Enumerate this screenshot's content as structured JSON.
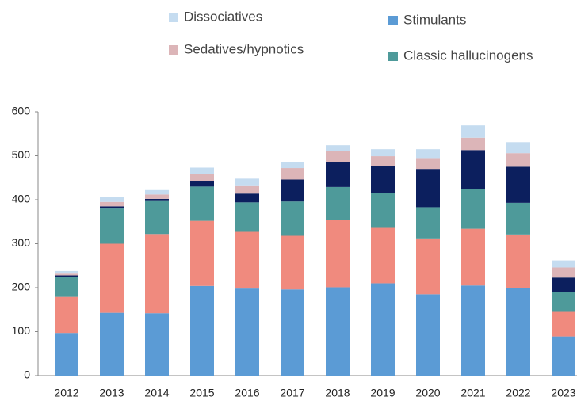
{
  "chart_data": {
    "type": "stacked_bar",
    "categories": [
      "2012",
      "2013",
      "2014",
      "2015",
      "2016",
      "2017",
      "2018",
      "2019",
      "2020",
      "2021",
      "2022",
      "2023"
    ],
    "series": [
      {
        "name": "Stimulants",
        "color": "#5b9bd5",
        "values": [
          97,
          143,
          142,
          204,
          198,
          196,
          201,
          210,
          185,
          205,
          199,
          89
        ]
      },
      {
        "color": "#f08a7e",
        "values": [
          82,
          157,
          180,
          148,
          129,
          122,
          153,
          126,
          127,
          129,
          122,
          56
        ]
      },
      {
        "name": "Classic hallucinogens",
        "color": "#4e9a9a",
        "values": [
          45,
          80,
          75,
          78,
          67,
          78,
          75,
          80,
          71,
          91,
          72,
          45
        ]
      },
      {
        "color": "#0c1f5e",
        "values": [
          4,
          5,
          5,
          13,
          20,
          50,
          57,
          60,
          87,
          88,
          82,
          33
        ]
      },
      {
        "name": "Sedatives/hypnotics",
        "color": "#dcb5b8",
        "values": [
          4,
          10,
          10,
          16,
          17,
          26,
          25,
          23,
          23,
          28,
          31,
          23
        ]
      },
      {
        "name": "Dissociatives",
        "color": "#c5dcf0",
        "values": [
          6,
          12,
          10,
          14,
          17,
          14,
          13,
          16,
          22,
          28,
          25,
          16
        ]
      }
    ],
    "ylim": [
      0,
      600
    ],
    "yticks": [
      0,
      100,
      200,
      300,
      400,
      500,
      600
    ]
  }
}
